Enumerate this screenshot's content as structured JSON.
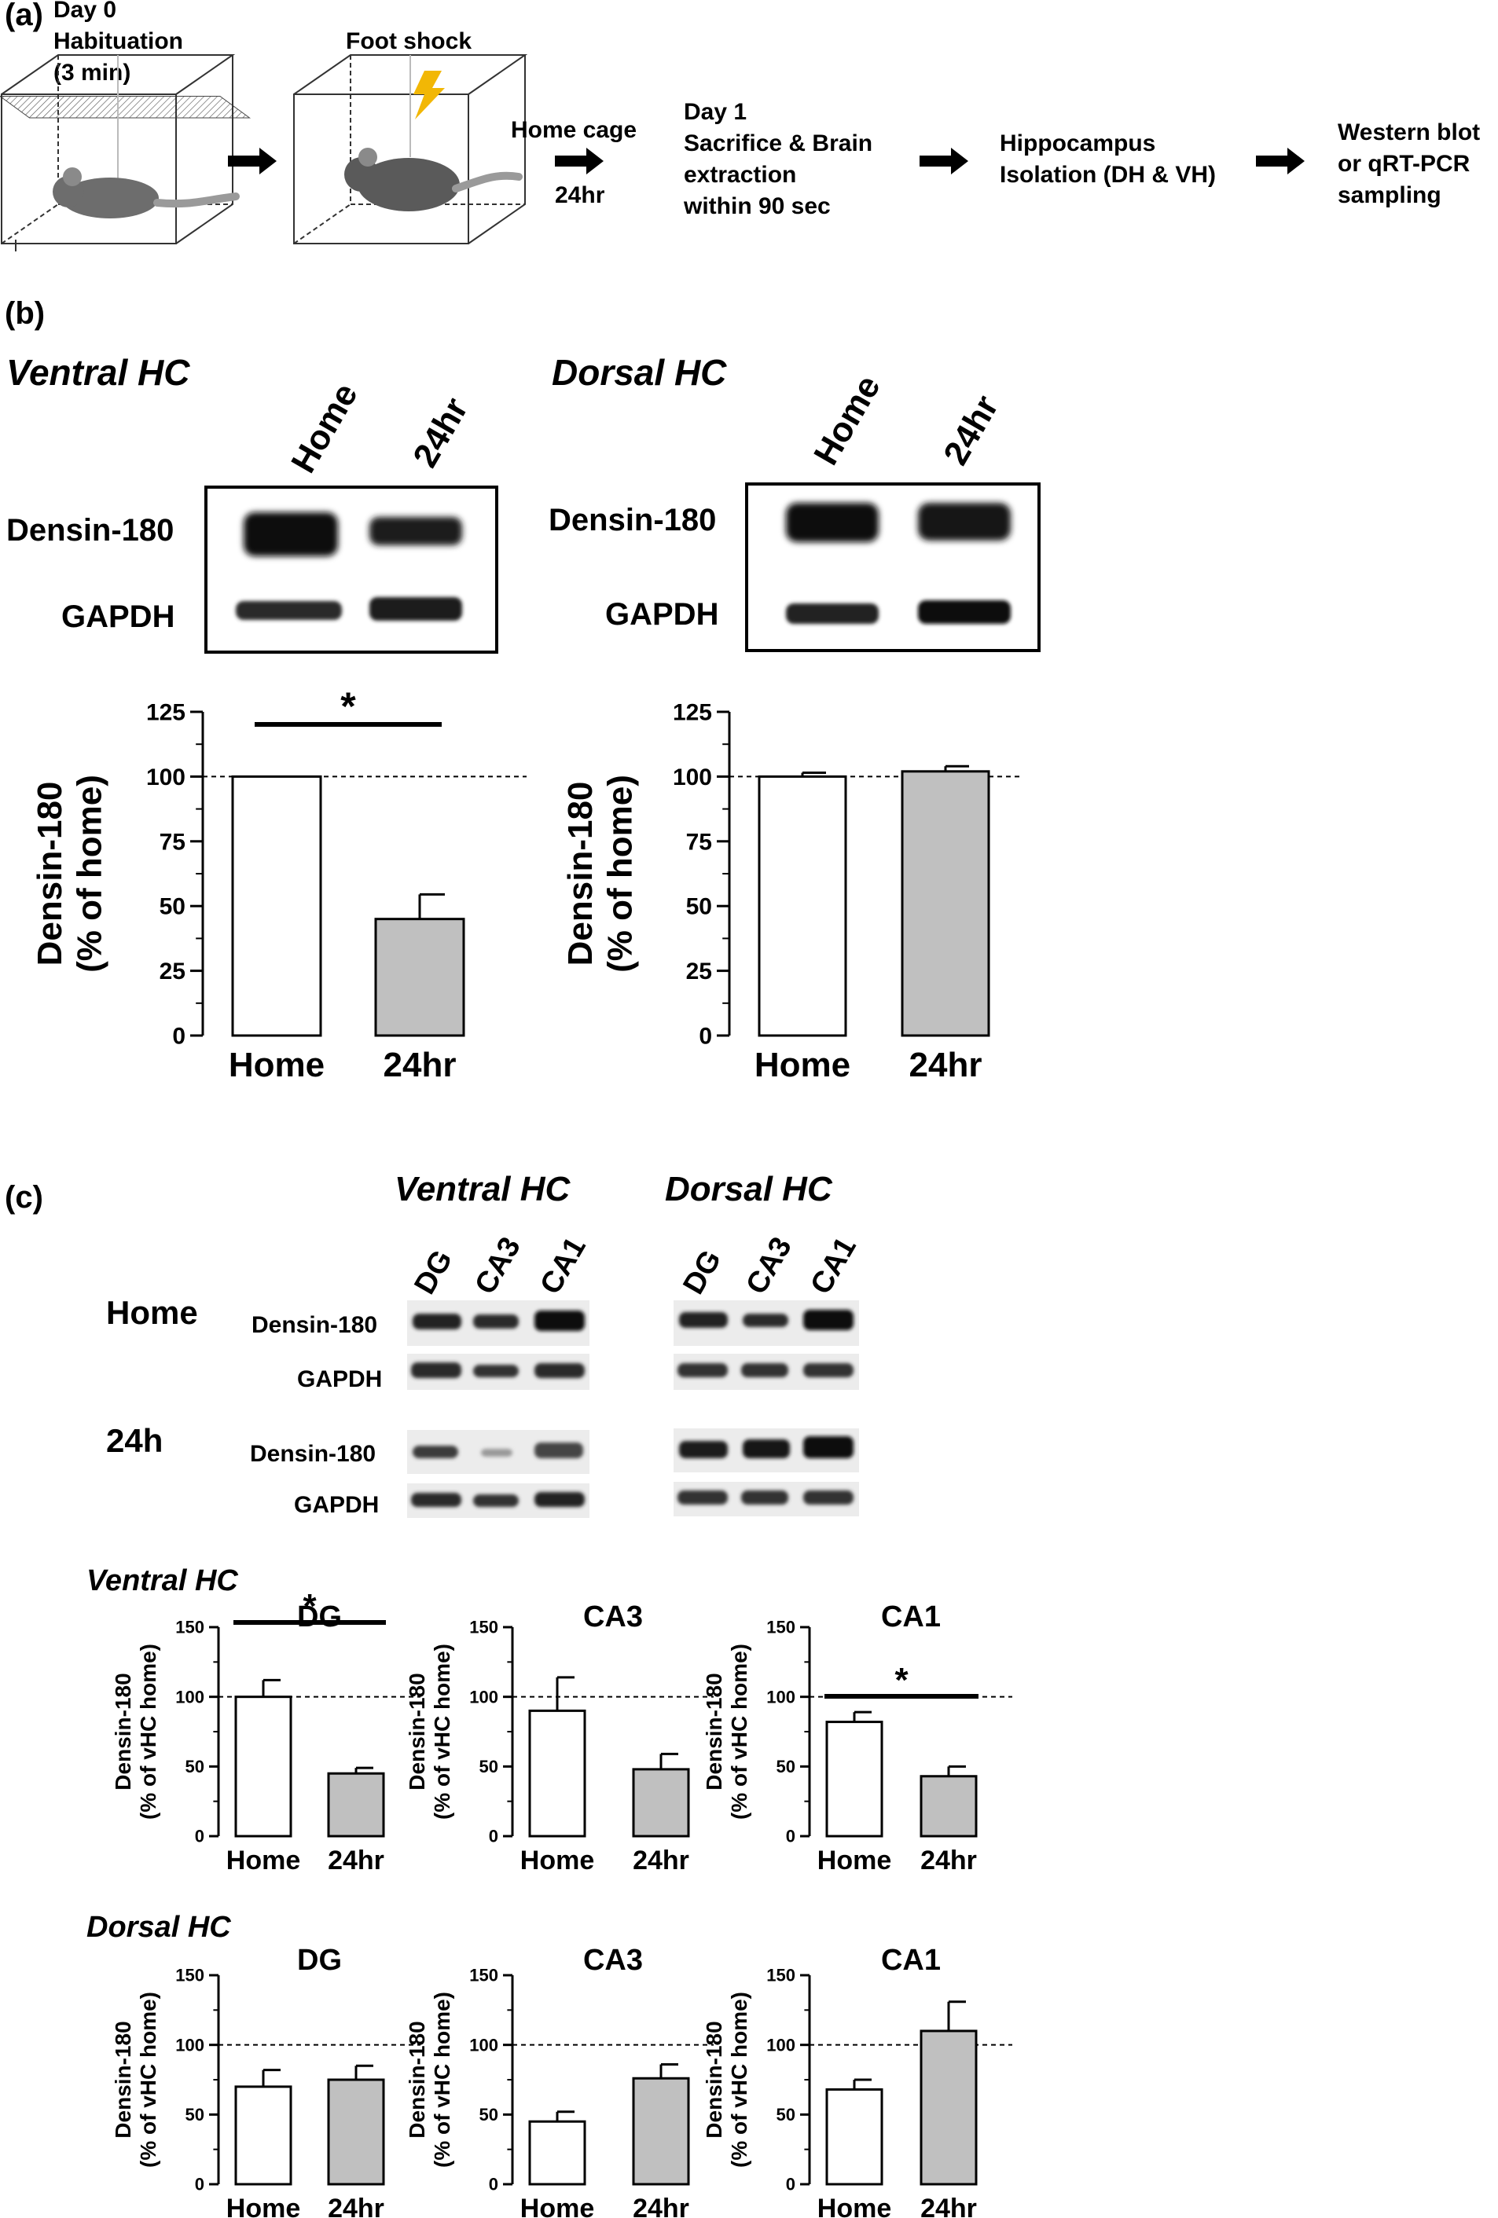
{
  "panel_a": {
    "label": "(a)",
    "habituation_lines": [
      "Day 0",
      "Habituation",
      "(3 min)"
    ],
    "foot_shock": "Foot shock",
    "home_cage": "Home cage",
    "home_cage_duration": "24hr",
    "day1_lines": [
      "Day 1",
      "Sacrifice & Brain",
      "extraction",
      "within 90 sec"
    ],
    "hippocampus_lines": [
      "Hippocampus",
      "Isolation (DH & VH)"
    ],
    "output_lines": [
      "Western blot",
      "or qRT-PCR",
      "sampling"
    ]
  },
  "panel_b": {
    "label": "(b)",
    "ventral_title": "Ventral HC",
    "dorsal_title": "Dorsal HC",
    "lane_home": "Home",
    "lane_24hr": "24hr",
    "blot_rows": [
      "Densin-180",
      "GAPDH"
    ],
    "ylabel_line1": "Densin-180",
    "ylabel_line2": "(% of home)",
    "yticks": [
      "0",
      "25",
      "50",
      "75",
      "100",
      "125"
    ],
    "sig_marker": "*"
  },
  "panel_c": {
    "label": "(c)",
    "ventral_title": "Ventral HC",
    "dorsal_title": "Dorsal HC",
    "lanes": [
      "DG",
      "CA3",
      "CA1"
    ],
    "row_home": "Home",
    "row_24h": "24h",
    "blot_rows": [
      "Densin-180",
      "GAPDH"
    ],
    "ventral_row_title": "Ventral HC",
    "dorsal_row_title": "Dorsal HC",
    "ylabel_line1": "Densin-180",
    "ylabel_line2": "(% of vHC home)",
    "yticks": [
      "0",
      "50",
      "100",
      "150"
    ],
    "sig_marker": "*"
  },
  "chart_data": [
    {
      "type": "bar",
      "title": "",
      "panel": "(b) Ventral HC",
      "categories": [
        "Home",
        "24hr"
      ],
      "values": [
        100,
        45
      ],
      "errors": [
        0,
        9.5
      ],
      "ylabel": "Densin-180 (% of home)",
      "ylim": [
        0,
        125
      ],
      "reference_line": 100,
      "significance": "Home vs 24hr *",
      "colors": [
        "#ffffff",
        "#c0c0c0"
      ]
    },
    {
      "type": "bar",
      "title": "",
      "panel": "(b) Dorsal HC",
      "categories": [
        "Home",
        "24hr"
      ],
      "values": [
        100,
        102
      ],
      "errors": [
        1.5,
        2
      ],
      "ylabel": "Densin-180 (% of home)",
      "ylim": [
        0,
        125
      ],
      "reference_line": 100,
      "colors": [
        "#ffffff",
        "#c0c0c0"
      ]
    },
    {
      "type": "bar",
      "title": "DG",
      "panel": "(c) Ventral HC",
      "categories": [
        "Home",
        "24hr"
      ],
      "values": [
        100,
        45
      ],
      "errors": [
        12,
        4
      ],
      "ylabel": "Densin-180 (% of vHC home)",
      "ylim": [
        0,
        150
      ],
      "reference_line": 100,
      "significance": "Home vs 24hr *",
      "colors": [
        "#ffffff",
        "#c0c0c0"
      ]
    },
    {
      "type": "bar",
      "title": "CA3",
      "panel": "(c) Ventral HC",
      "categories": [
        "Home",
        "24hr"
      ],
      "values": [
        90,
        48
      ],
      "errors": [
        24,
        11
      ],
      "ylabel": "Densin-180 (% of vHC home)",
      "ylim": [
        0,
        150
      ],
      "reference_line": 100,
      "colors": [
        "#ffffff",
        "#c0c0c0"
      ]
    },
    {
      "type": "bar",
      "title": "CA1",
      "panel": "(c) Ventral HC",
      "categories": [
        "Home",
        "24hr"
      ],
      "values": [
        82,
        43
      ],
      "errors": [
        7,
        7
      ],
      "ylabel": "Densin-180 (% of vHC home)",
      "ylim": [
        0,
        150
      ],
      "reference_line": 100,
      "significance": "Home vs 24hr *",
      "colors": [
        "#ffffff",
        "#c0c0c0"
      ]
    },
    {
      "type": "bar",
      "title": "DG",
      "panel": "(c) Dorsal HC",
      "categories": [
        "Home",
        "24hr"
      ],
      "values": [
        70,
        75
      ],
      "errors": [
        12,
        10
      ],
      "ylabel": "Densin-180 (% of vHC home)",
      "ylim": [
        0,
        150
      ],
      "reference_line": 100,
      "colors": [
        "#ffffff",
        "#c0c0c0"
      ]
    },
    {
      "type": "bar",
      "title": "CA3",
      "panel": "(c) Dorsal HC",
      "categories": [
        "Home",
        "24hr"
      ],
      "values": [
        45,
        76
      ],
      "errors": [
        7,
        10
      ],
      "ylabel": "Densin-180 (% of vHC home)",
      "ylim": [
        0,
        150
      ],
      "reference_line": 100,
      "colors": [
        "#ffffff",
        "#c0c0c0"
      ]
    },
    {
      "type": "bar",
      "title": "CA1",
      "panel": "(c) Dorsal HC",
      "categories": [
        "Home",
        "24hr"
      ],
      "values": [
        68,
        110
      ],
      "errors": [
        7,
        21
      ],
      "ylabel": "Densin-180 (% of vHC home)",
      "ylim": [
        0,
        150
      ],
      "reference_line": 100,
      "colors": [
        "#ffffff",
        "#c0c0c0"
      ]
    }
  ]
}
